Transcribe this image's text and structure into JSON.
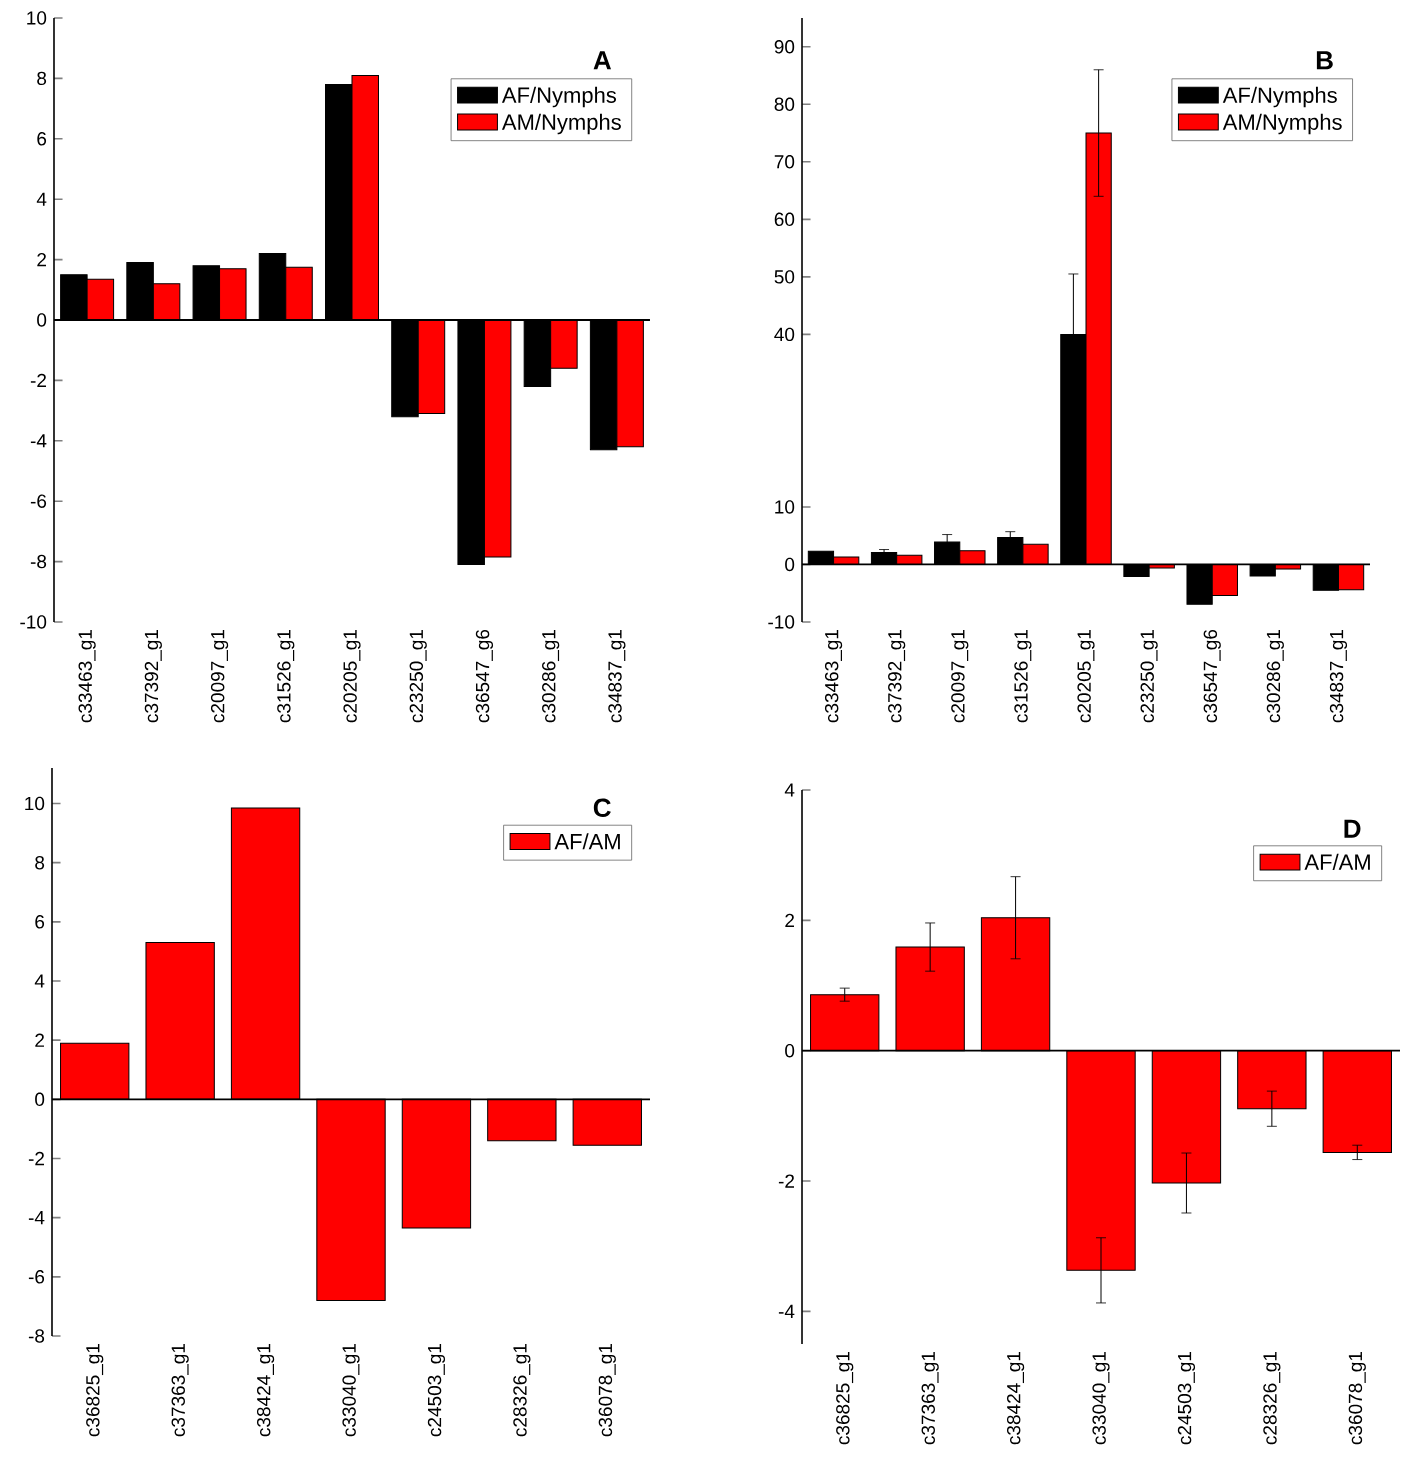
{
  "chart_data": [
    {
      "type": "bar",
      "title": "A",
      "categories": [
        "c33463_g1",
        "c37392_g1",
        "c20097_g1",
        "c31526_g1",
        "c20205_g1",
        "c23250_g1",
        "c36547_g6",
        "c30286_g1",
        "c34837_g1"
      ],
      "series": [
        {
          "name": "AF/Nymphs",
          "color": "#000000",
          "values": [
            1.5,
            1.9,
            1.8,
            2.2,
            7.8,
            -3.2,
            -8.1,
            -2.2,
            -4.3
          ]
        },
        {
          "name": "AM/Nymphs",
          "color": "#ff0000",
          "values": [
            1.35,
            1.2,
            1.7,
            1.75,
            8.1,
            -3.1,
            -7.85,
            -1.6,
            -4.2
          ]
        }
      ],
      "ylim": [
        -10,
        10
      ],
      "yticks": [
        -10,
        -8,
        -6,
        -4,
        -2,
        0,
        2,
        4,
        6,
        8,
        10
      ],
      "legend": "top right"
    },
    {
      "type": "bar",
      "title": "B",
      "categories": [
        "c33463_g1",
        "c37392_g1",
        "c20097_g1",
        "c31526_g1",
        "c20205_g1",
        "c23250_g1",
        "c36547_g6",
        "c30286_g1",
        "c34837_g1"
      ],
      "series": [
        {
          "name": "AF/Nymphs",
          "color": "#000000",
          "values": [
            2.3,
            2.1,
            3.9,
            4.7,
            40,
            -2.1,
            -6.9,
            -2.0,
            -4.5
          ],
          "errors": [
            null,
            0.5,
            1.3,
            1.0,
            10.5,
            null,
            null,
            null,
            null
          ]
        },
        {
          "name": "AM/Nymphs",
          "color": "#ff0000",
          "values": [
            1.3,
            1.6,
            2.4,
            3.5,
            75,
            -0.6,
            -5.4,
            -0.8,
            -4.4
          ],
          "errors": [
            null,
            null,
            null,
            null,
            11,
            null,
            null,
            null,
            null
          ]
        }
      ],
      "ylim": [
        -10,
        95
      ],
      "yticks": [
        -10,
        0,
        10,
        40,
        50,
        60,
        70,
        80,
        90
      ],
      "legend": "top right"
    },
    {
      "type": "bar",
      "title": "C",
      "categories": [
        "c36825_g1",
        "c37363_g1",
        "c38424_g1",
        "c33040_g1",
        "c24503_g1",
        "c28326_g1",
        "c36078_g1"
      ],
      "series": [
        {
          "name": "AF/AM",
          "color": "#ff0000",
          "values": [
            1.9,
            5.3,
            9.85,
            -6.8,
            -4.35,
            -1.4,
            -1.55
          ]
        }
      ],
      "ylim": [
        -8,
        11.2
      ],
      "yticks": [
        -8,
        -6,
        -4,
        -2,
        0,
        2,
        4,
        6,
        8,
        10
      ],
      "legend": "top right"
    },
    {
      "type": "bar",
      "title": "D",
      "categories": [
        "c36825_g1",
        "c37363_g1",
        "c38424_g1",
        "c33040_g1",
        "c24503_g1",
        "c28326_g1",
        "c36078_g1"
      ],
      "series": [
        {
          "name": "AF/AM",
          "color": "#ff0000",
          "values": [
            0.86,
            1.59,
            2.04,
            -3.37,
            -2.03,
            -0.89,
            -1.56
          ],
          "errors": [
            0.1,
            0.37,
            0.63,
            0.5,
            0.46,
            0.27,
            0.11
          ]
        }
      ],
      "ylim": [
        -4.5,
        4
      ],
      "yticks": [
        -4,
        -2,
        0,
        2,
        4
      ],
      "legend": "top right"
    }
  ]
}
